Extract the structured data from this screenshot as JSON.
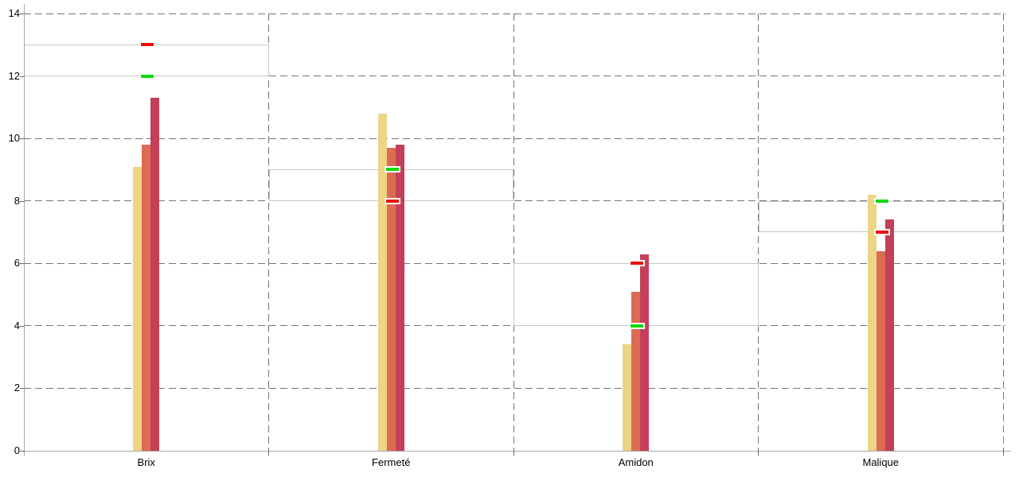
{
  "chart_data": {
    "type": "bar",
    "title": "",
    "xlabel": "",
    "ylabel": "",
    "legend": "none",
    "grid": "dashed horizontal gridlines at each y tick; dashed vertical separators between category sections",
    "categories": [
      "Brix",
      "Fermeté",
      "Amidon",
      "Malique"
    ],
    "series": [
      {
        "name": "tan-series",
        "color": "#ecd584",
        "values": [
          9.1,
          10.8,
          3.4,
          8.2
        ]
      },
      {
        "name": "orange-series",
        "color": "#db6b53",
        "values": [
          9.8,
          9.7,
          5.1,
          6.4
        ]
      },
      {
        "name": "crimson-series",
        "color": "#c43f58",
        "values": [
          11.3,
          9.8,
          6.3,
          7.4
        ]
      }
    ],
    "target_markers": [
      {
        "category": "Brix",
        "green": 12,
        "red": 13
      },
      {
        "category": "Fermeté",
        "green": 9,
        "red": 8
      },
      {
        "category": "Amidon",
        "green": 4,
        "red": 6
      },
      {
        "category": "Malique",
        "green": 8,
        "red": 7
      }
    ],
    "target_bands": [
      [
        12,
        13
      ],
      [
        8,
        9
      ],
      [
        4,
        6
      ],
      [
        7,
        8
      ]
    ],
    "ylim": [
      0,
      14
    ],
    "yticks": [
      0,
      2,
      4,
      6,
      8,
      10,
      12,
      14
    ],
    "colors": {
      "marker_green": "#0bdb0b",
      "marker_red": "#ee0e0e",
      "band_border": "#c6c6c6",
      "grid_dashed": "#757575",
      "axis": "#a8a8a8",
      "background": "#ffffff",
      "text": "#000000"
    }
  }
}
